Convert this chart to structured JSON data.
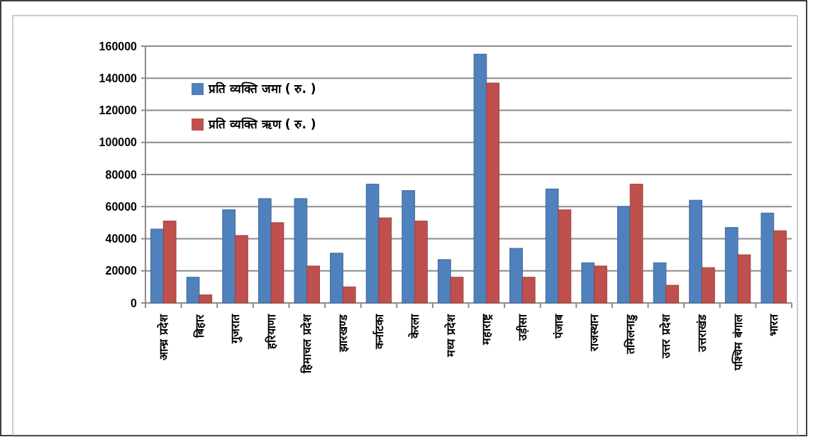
{
  "chart_data": {
    "type": "bar",
    "categories": [
      "आन्ध्र प्रदेश",
      "बिहार",
      "गुजरात",
      "हरियाणा",
      "हिमाचल प्रदेश",
      "झारखण्ड",
      "कर्नाटका",
      "केरला",
      "मध्य प्रदेश",
      "महाराष्ट्र",
      "उड़ीसा",
      "पंजाब",
      "राजस्थान",
      "तमिलनाडु",
      "उत्तर प्रदेश",
      "उत्तराखंड",
      "पश्चिम बंगाल",
      "भारत"
    ],
    "series": [
      {
        "name": "प्रति व्यक्ति जमा ( रु. )",
        "color": "#4f81bd",
        "values": [
          46000,
          16000,
          58000,
          65000,
          65000,
          31000,
          74000,
          70000,
          27000,
          155000,
          34000,
          71000,
          25000,
          60000,
          25000,
          64000,
          47000,
          56000
        ]
      },
      {
        "name": "प्रति व्यक्ति ऋण ( रु. )",
        "color": "#c0504d",
        "values": [
          51000,
          5000,
          42000,
          50000,
          23000,
          10000,
          53000,
          51000,
          16000,
          137000,
          16000,
          58000,
          23000,
          74000,
          11000,
          22000,
          30000,
          45000
        ]
      }
    ],
    "ylim": [
      0,
      160000
    ],
    "yticks": [
      0,
      20000,
      40000,
      60000,
      80000,
      100000,
      120000,
      140000,
      160000
    ],
    "grid": "y",
    "legend": "top left"
  }
}
